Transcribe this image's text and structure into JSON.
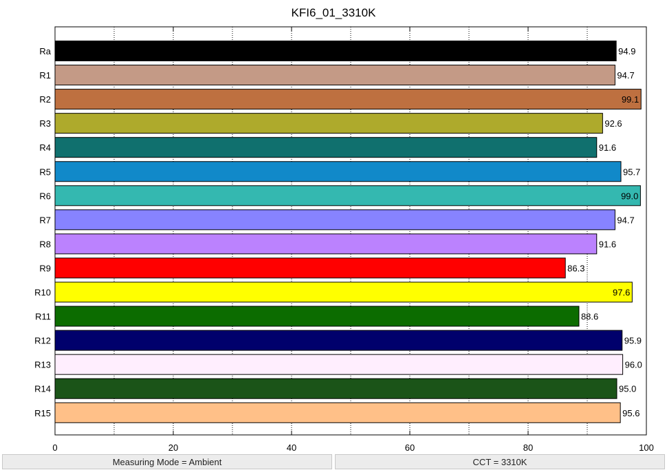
{
  "chart_data": {
    "type": "bar",
    "orientation": "horizontal",
    "title": "KFI6_01_3310K",
    "categories": [
      "Ra",
      "R1",
      "R2",
      "R3",
      "R4",
      "R5",
      "R6",
      "R7",
      "R8",
      "R9",
      "R10",
      "R11",
      "R12",
      "R13",
      "R14",
      "R15"
    ],
    "values": [
      94.9,
      94.7,
      99.1,
      92.6,
      91.6,
      95.7,
      99.0,
      94.7,
      91.6,
      86.3,
      97.6,
      88.6,
      95.9,
      96.0,
      95.0,
      95.6
    ],
    "value_labels": [
      "94.9",
      "94.7",
      "99.1",
      "92.6",
      "91.6",
      "95.7",
      "99.0",
      "94.7",
      "91.6",
      "86.3",
      "97.6",
      "88.6",
      "95.9",
      "96.0",
      "95.0",
      "95.6"
    ],
    "colors": [
      "#000000",
      "#c49a86",
      "#be7040",
      "#aeaa2c",
      "#10706e",
      "#1189c9",
      "#34b8b0",
      "#8783ff",
      "#bb82fe",
      "#ff0000",
      "#ffff00",
      "#0c6c00",
      "#00006c",
      "#ffeefe",
      "#1b5418",
      "#ffc088"
    ],
    "xlim": [
      0,
      100
    ],
    "x_ticks": [
      "0",
      "20",
      "40",
      "60",
      "80",
      "100"
    ],
    "grid": "vertical dotted",
    "xlabel": "",
    "ylabel": ""
  },
  "status": {
    "measuring_mode": "Measuring Mode = Ambient",
    "cct": "CCT = 3310K"
  }
}
